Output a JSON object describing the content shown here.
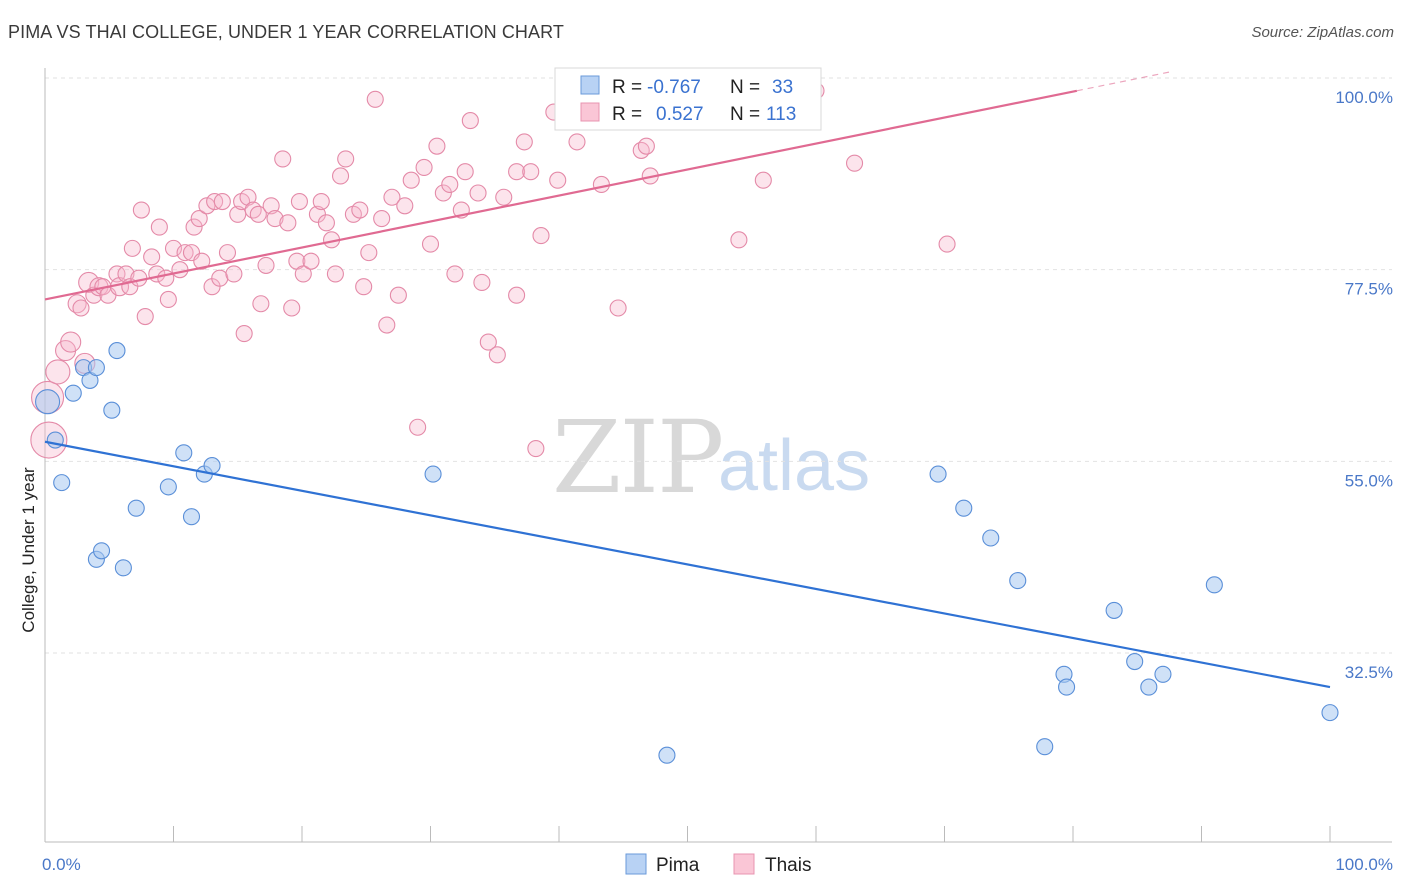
{
  "header": {
    "title": "PIMA VS THAI COLLEGE, UNDER 1 YEAR CORRELATION CHART",
    "source": "Source: ZipAtlas.com"
  },
  "colors": {
    "pima_fill": "#a8c8f0",
    "pima_stroke": "#5a8fd8",
    "pima_line": "#2f72d4",
    "thais_fill": "#f8b8cc",
    "thais_stroke": "#e48aa8",
    "thais_line": "#e06a92",
    "tick_text": "#4a78c8",
    "grid": "#e2e2e2"
  },
  "legend_top": {
    "rows": [
      {
        "series": "Pima",
        "r_label": "R =",
        "r_value": "-0.767",
        "n_label": "N =",
        "n_value": "33"
      },
      {
        "series": "Thais",
        "r_label": "R =",
        "r_value": "0.527",
        "n_label": "N =",
        "n_value": "113"
      }
    ]
  },
  "legend_bottom": {
    "items": [
      "Pima",
      "Thais"
    ]
  },
  "watermark": {
    "zip": "ZIP",
    "atlas": "atlas"
  },
  "chart_data": {
    "type": "scatter",
    "title": "PIMA VS THAI COLLEGE, UNDER 1 YEAR CORRELATION CHART",
    "xlabel": "",
    "ylabel": "College, Under 1 year",
    "xlim": [
      0,
      100
    ],
    "ylim": [
      12,
      100
    ],
    "x_tick_labels": [
      {
        "value": 0,
        "label": "0.0%"
      },
      {
        "value": 100,
        "label": "100.0%"
      }
    ],
    "y_tick_labels": [
      {
        "value": 100,
        "label": "100.0%"
      },
      {
        "value": 77.5,
        "label": "77.5%"
      },
      {
        "value": 55,
        "label": "55.0%"
      },
      {
        "value": 32.5,
        "label": "32.5%"
      }
    ],
    "grid": true,
    "legend_position": "top-center",
    "series": [
      {
        "name": "Pima",
        "r": -0.767,
        "n": 33,
        "trend": {
          "x": [
            0,
            100
          ],
          "y": [
            57.3,
            28.5
          ]
        },
        "points": [
          {
            "x": 0.2,
            "y": 62.0,
            "s": 12
          },
          {
            "x": 0.8,
            "y": 57.5,
            "s": 8
          },
          {
            "x": 1.3,
            "y": 52.5,
            "s": 8
          },
          {
            "x": 2.2,
            "y": 63.0,
            "s": 8
          },
          {
            "x": 3.0,
            "y": 66.0,
            "s": 8
          },
          {
            "x": 3.5,
            "y": 64.5,
            "s": 8
          },
          {
            "x": 4.0,
            "y": 43.5,
            "s": 8
          },
          {
            "x": 4.4,
            "y": 44.5,
            "s": 8
          },
          {
            "x": 4.0,
            "y": 66.0,
            "s": 8
          },
          {
            "x": 5.2,
            "y": 61.0,
            "s": 8
          },
          {
            "x": 5.6,
            "y": 68.0,
            "s": 8
          },
          {
            "x": 6.1,
            "y": 42.5,
            "s": 8
          },
          {
            "x": 7.1,
            "y": 49.5,
            "s": 8
          },
          {
            "x": 9.6,
            "y": 52.0,
            "s": 8
          },
          {
            "x": 10.8,
            "y": 56.0,
            "s": 8
          },
          {
            "x": 11.4,
            "y": 48.5,
            "s": 8
          },
          {
            "x": 12.4,
            "y": 53.5,
            "s": 8
          },
          {
            "x": 13.0,
            "y": 54.5,
            "s": 8
          },
          {
            "x": 30.2,
            "y": 53.5,
            "s": 8
          },
          {
            "x": 48.4,
            "y": 20.5,
            "s": 8
          },
          {
            "x": 69.5,
            "y": 53.5,
            "s": 8
          },
          {
            "x": 71.5,
            "y": 49.5,
            "s": 8
          },
          {
            "x": 73.6,
            "y": 46.0,
            "s": 8
          },
          {
            "x": 75.7,
            "y": 41.0,
            "s": 8
          },
          {
            "x": 77.8,
            "y": 21.5,
            "s": 8
          },
          {
            "x": 79.3,
            "y": 30.0,
            "s": 8
          },
          {
            "x": 79.5,
            "y": 28.5,
            "s": 8
          },
          {
            "x": 83.2,
            "y": 37.5,
            "s": 8
          },
          {
            "x": 84.8,
            "y": 31.5,
            "s": 8
          },
          {
            "x": 85.9,
            "y": 28.5,
            "s": 8
          },
          {
            "x": 87.0,
            "y": 30.0,
            "s": 8
          },
          {
            "x": 91.0,
            "y": 40.5,
            "s": 8
          },
          {
            "x": 100.0,
            "y": 25.5,
            "s": 8
          }
        ]
      },
      {
        "name": "Thais",
        "r": 0.527,
        "n": 113,
        "trend": {
          "x": [
            0,
            80.3
          ],
          "y": [
            74.0,
            98.5
          ],
          "dashed_extension": {
            "x": [
              80.3,
              87.5
            ],
            "y": [
              98.5,
              100.7
            ]
          }
        },
        "points": [
          {
            "x": 0.2,
            "y": 62.5,
            "s": 16
          },
          {
            "x": 0.3,
            "y": 57.5,
            "s": 18
          },
          {
            "x": 1.0,
            "y": 65.5,
            "s": 12
          },
          {
            "x": 1.6,
            "y": 68.0,
            "s": 10
          },
          {
            "x": 2.0,
            "y": 69.0,
            "s": 10
          },
          {
            "x": 2.5,
            "y": 73.5,
            "s": 9
          },
          {
            "x": 2.8,
            "y": 73.0,
            "s": 8
          },
          {
            "x": 3.1,
            "y": 66.5,
            "s": 10
          },
          {
            "x": 3.4,
            "y": 76.0,
            "s": 10
          },
          {
            "x": 3.8,
            "y": 74.5,
            "s": 8
          },
          {
            "x": 4.2,
            "y": 75.5,
            "s": 9
          },
          {
            "x": 4.5,
            "y": 75.5,
            "s": 8
          },
          {
            "x": 4.9,
            "y": 74.5,
            "s": 8
          },
          {
            "x": 5.6,
            "y": 77.0,
            "s": 8
          },
          {
            "x": 5.8,
            "y": 75.5,
            "s": 9
          },
          {
            "x": 6.3,
            "y": 77.0,
            "s": 8
          },
          {
            "x": 6.6,
            "y": 75.5,
            "s": 8
          },
          {
            "x": 6.8,
            "y": 80.0,
            "s": 8
          },
          {
            "x": 7.3,
            "y": 76.5,
            "s": 8
          },
          {
            "x": 7.5,
            "y": 84.5,
            "s": 8
          },
          {
            "x": 7.8,
            "y": 72.0,
            "s": 8
          },
          {
            "x": 8.3,
            "y": 79.0,
            "s": 8
          },
          {
            "x": 8.7,
            "y": 77.0,
            "s": 8
          },
          {
            "x": 8.9,
            "y": 82.5,
            "s": 8
          },
          {
            "x": 9.4,
            "y": 76.5,
            "s": 8
          },
          {
            "x": 9.6,
            "y": 74.0,
            "s": 8
          },
          {
            "x": 10.0,
            "y": 80.0,
            "s": 8
          },
          {
            "x": 10.5,
            "y": 77.5,
            "s": 8
          },
          {
            "x": 10.9,
            "y": 79.5,
            "s": 8
          },
          {
            "x": 11.4,
            "y": 79.5,
            "s": 8
          },
          {
            "x": 11.6,
            "y": 82.5,
            "s": 8
          },
          {
            "x": 12.0,
            "y": 83.5,
            "s": 8
          },
          {
            "x": 12.2,
            "y": 78.5,
            "s": 8
          },
          {
            "x": 12.6,
            "y": 85.0,
            "s": 8
          },
          {
            "x": 13.0,
            "y": 75.5,
            "s": 8
          },
          {
            "x": 13.2,
            "y": 85.5,
            "s": 8
          },
          {
            "x": 13.6,
            "y": 76.5,
            "s": 8
          },
          {
            "x": 13.8,
            "y": 85.5,
            "s": 8
          },
          {
            "x": 14.2,
            "y": 79.5,
            "s": 8
          },
          {
            "x": 14.7,
            "y": 77.0,
            "s": 8
          },
          {
            "x": 15.0,
            "y": 84.0,
            "s": 8
          },
          {
            "x": 15.3,
            "y": 85.5,
            "s": 8
          },
          {
            "x": 15.5,
            "y": 70.0,
            "s": 8
          },
          {
            "x": 15.8,
            "y": 86.0,
            "s": 8
          },
          {
            "x": 16.2,
            "y": 84.5,
            "s": 8
          },
          {
            "x": 16.6,
            "y": 84.0,
            "s": 8
          },
          {
            "x": 16.8,
            "y": 73.5,
            "s": 8
          },
          {
            "x": 17.2,
            "y": 78.0,
            "s": 8
          },
          {
            "x": 17.6,
            "y": 85.0,
            "s": 8
          },
          {
            "x": 17.9,
            "y": 83.5,
            "s": 8
          },
          {
            "x": 18.5,
            "y": 90.5,
            "s": 8
          },
          {
            "x": 18.9,
            "y": 83.0,
            "s": 8
          },
          {
            "x": 19.2,
            "y": 73.0,
            "s": 8
          },
          {
            "x": 19.6,
            "y": 78.5,
            "s": 8
          },
          {
            "x": 19.8,
            "y": 85.5,
            "s": 8
          },
          {
            "x": 20.1,
            "y": 77.0,
            "s": 8
          },
          {
            "x": 20.7,
            "y": 78.5,
            "s": 8
          },
          {
            "x": 21.2,
            "y": 84.0,
            "s": 8
          },
          {
            "x": 21.5,
            "y": 85.5,
            "s": 8
          },
          {
            "x": 21.9,
            "y": 83.0,
            "s": 8
          },
          {
            "x": 22.3,
            "y": 81.0,
            "s": 8
          },
          {
            "x": 22.6,
            "y": 77.0,
            "s": 8
          },
          {
            "x": 23.0,
            "y": 88.5,
            "s": 8
          },
          {
            "x": 23.4,
            "y": 90.5,
            "s": 8
          },
          {
            "x": 24.0,
            "y": 84.0,
            "s": 8
          },
          {
            "x": 24.5,
            "y": 84.5,
            "s": 8
          },
          {
            "x": 24.8,
            "y": 75.5,
            "s": 8
          },
          {
            "x": 25.2,
            "y": 79.5,
            "s": 8
          },
          {
            "x": 25.7,
            "y": 97.5,
            "s": 8
          },
          {
            "x": 26.2,
            "y": 83.5,
            "s": 8
          },
          {
            "x": 26.6,
            "y": 71.0,
            "s": 8
          },
          {
            "x": 27.0,
            "y": 86.0,
            "s": 8
          },
          {
            "x": 27.5,
            "y": 74.5,
            "s": 8
          },
          {
            "x": 28.0,
            "y": 85.0,
            "s": 8
          },
          {
            "x": 28.5,
            "y": 88.0,
            "s": 8
          },
          {
            "x": 29.0,
            "y": 59.0,
            "s": 8
          },
          {
            "x": 29.5,
            "y": 89.5,
            "s": 8
          },
          {
            "x": 30.0,
            "y": 80.5,
            "s": 8
          },
          {
            "x": 30.5,
            "y": 92.0,
            "s": 8
          },
          {
            "x": 31.0,
            "y": 86.5,
            "s": 8
          },
          {
            "x": 31.5,
            "y": 87.5,
            "s": 8
          },
          {
            "x": 31.9,
            "y": 77.0,
            "s": 8
          },
          {
            "x": 32.4,
            "y": 84.5,
            "s": 8
          },
          {
            "x": 32.7,
            "y": 89.0,
            "s": 8
          },
          {
            "x": 33.1,
            "y": 95.0,
            "s": 8
          },
          {
            "x": 33.7,
            "y": 86.5,
            "s": 8
          },
          {
            "x": 34.0,
            "y": 76.0,
            "s": 8
          },
          {
            "x": 34.5,
            "y": 69.0,
            "s": 8
          },
          {
            "x": 35.2,
            "y": 67.5,
            "s": 8
          },
          {
            "x": 35.7,
            "y": 86.0,
            "s": 8
          },
          {
            "x": 36.7,
            "y": 89.0,
            "s": 8
          },
          {
            "x": 36.7,
            "y": 74.5,
            "s": 8
          },
          {
            "x": 37.3,
            "y": 92.5,
            "s": 8
          },
          {
            "x": 37.8,
            "y": 89.0,
            "s": 8
          },
          {
            "x": 38.2,
            "y": 56.5,
            "s": 8
          },
          {
            "x": 38.6,
            "y": 81.5,
            "s": 8
          },
          {
            "x": 39.6,
            "y": 96.0,
            "s": 8
          },
          {
            "x": 39.9,
            "y": 88.0,
            "s": 8
          },
          {
            "x": 41.4,
            "y": 92.5,
            "s": 8
          },
          {
            "x": 43.3,
            "y": 87.5,
            "s": 8
          },
          {
            "x": 44.6,
            "y": 73.0,
            "s": 8
          },
          {
            "x": 46.4,
            "y": 91.5,
            "s": 8
          },
          {
            "x": 46.8,
            "y": 92.0,
            "s": 8
          },
          {
            "x": 47.1,
            "y": 88.5,
            "s": 8
          },
          {
            "x": 48.2,
            "y": 95.0,
            "s": 8
          },
          {
            "x": 48.9,
            "y": 97.5,
            "s": 8
          },
          {
            "x": 50.5,
            "y": 95.0,
            "s": 8
          },
          {
            "x": 51.4,
            "y": 99.0,
            "s": 8
          },
          {
            "x": 54.0,
            "y": 81.0,
            "s": 8
          },
          {
            "x": 55.9,
            "y": 88.0,
            "s": 8
          },
          {
            "x": 70.2,
            "y": 80.5,
            "s": 8
          },
          {
            "x": 60.0,
            "y": 98.5,
            "s": 8
          },
          {
            "x": 63.0,
            "y": 90.0,
            "s": 8
          }
        ]
      }
    ]
  }
}
